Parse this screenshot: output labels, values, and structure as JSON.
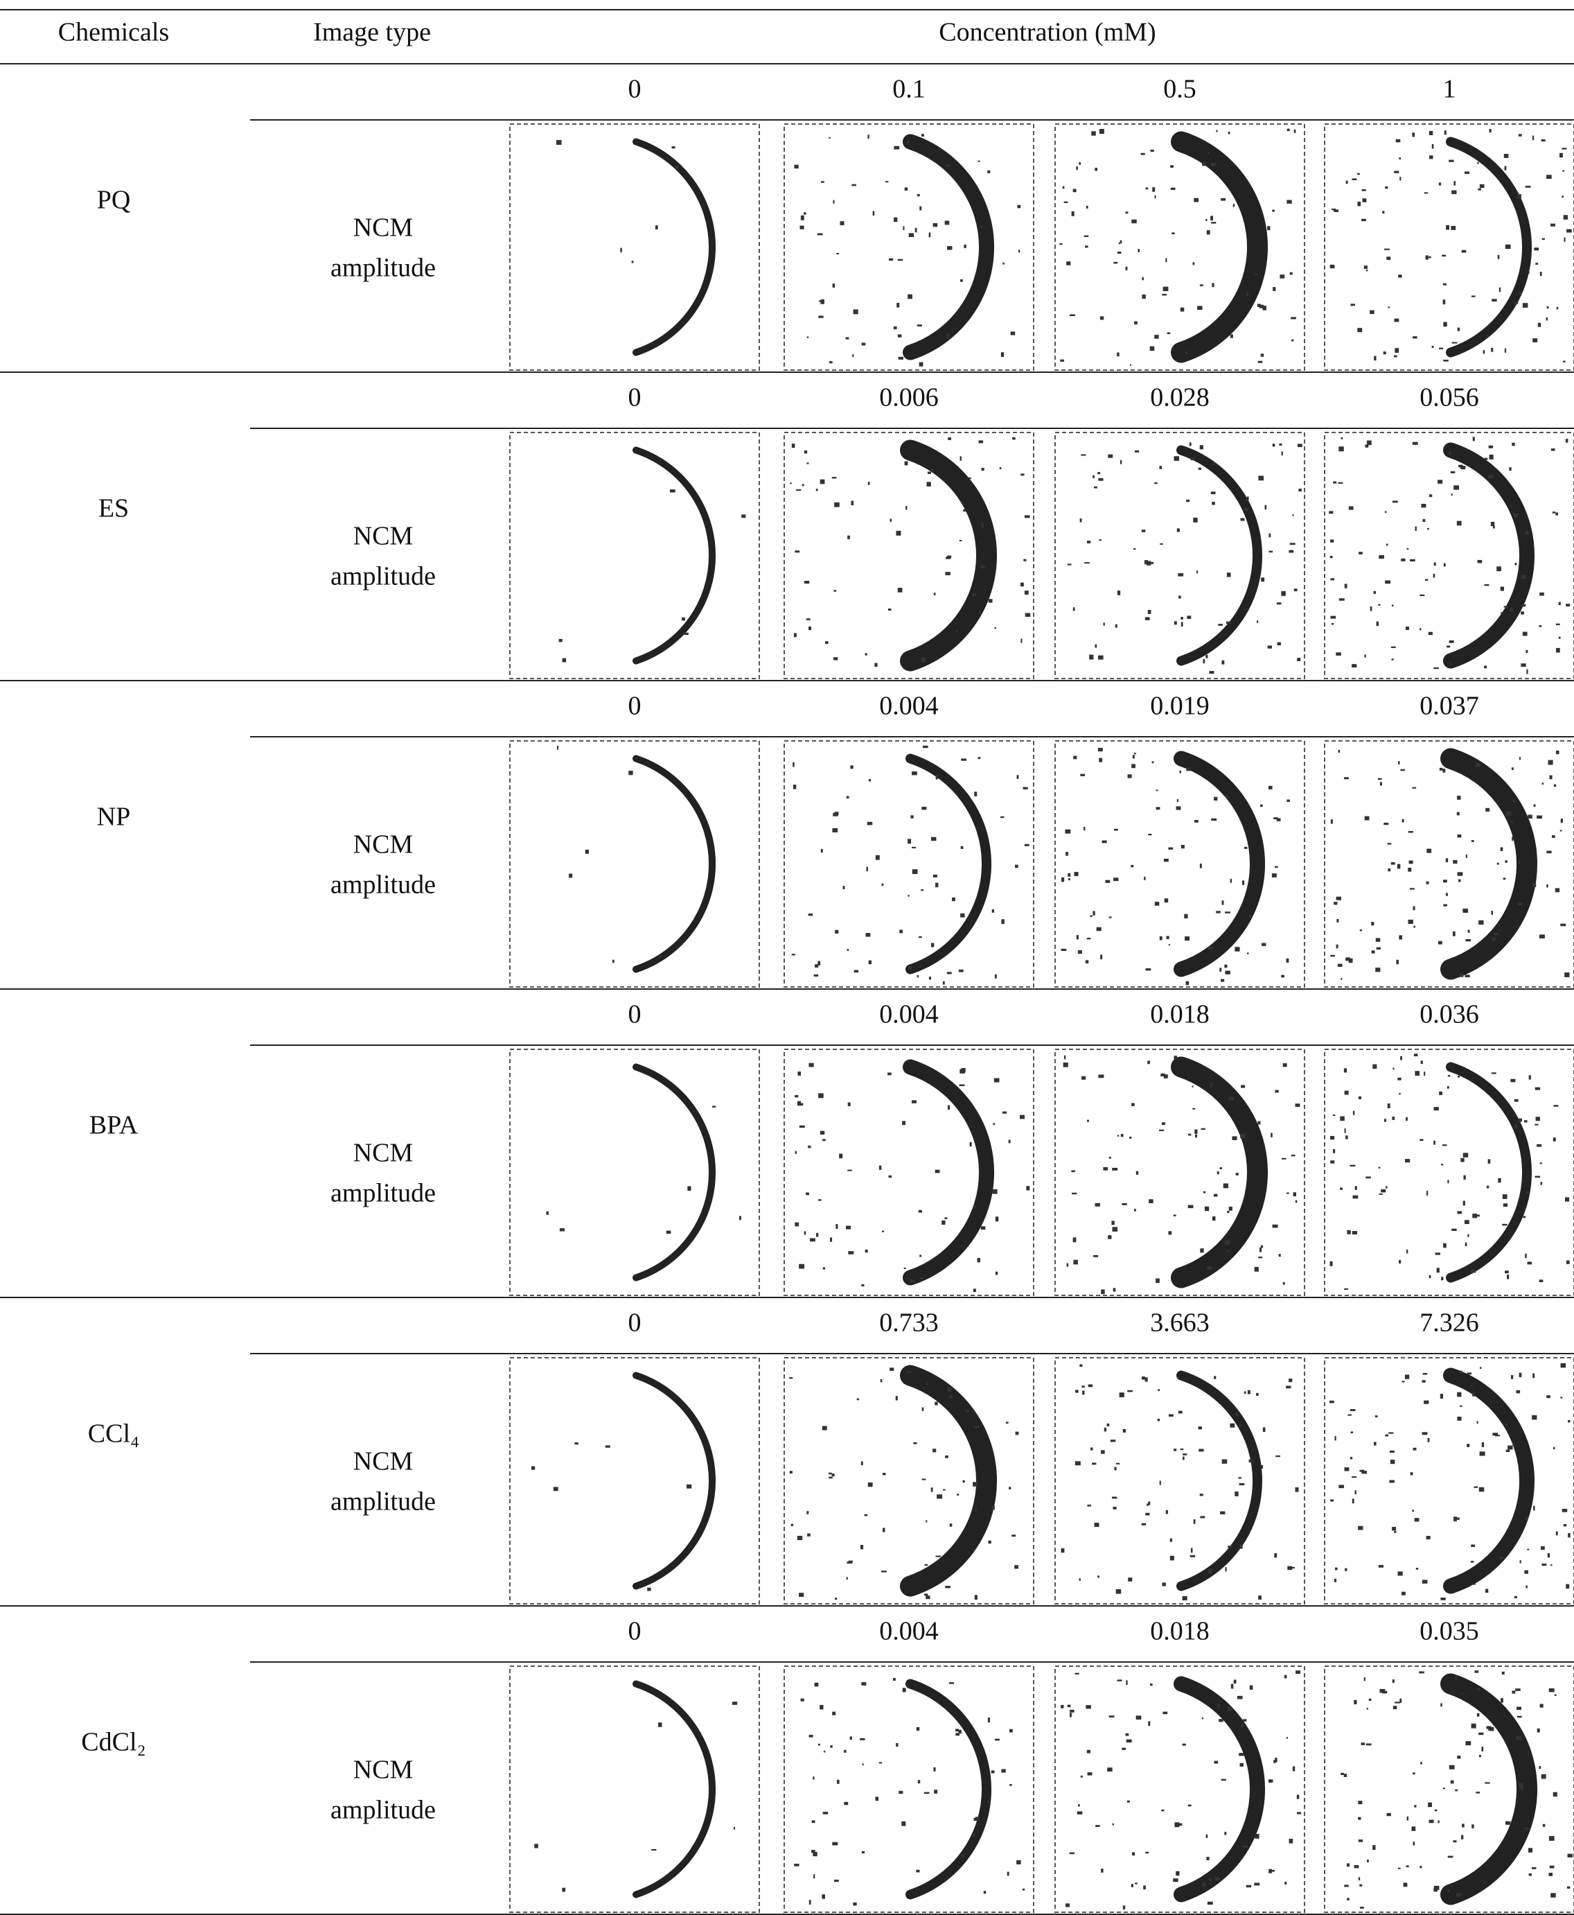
{
  "table": {
    "header": [
      "Chemicals",
      "Image type",
      "Concentration (mM)"
    ],
    "rows": [
      {
        "chemical": "PQ",
        "image_type": [
          "NCM",
          "amplitude"
        ],
        "concentrations": [
          "0",
          "0.1",
          "0.5",
          "1"
        ]
      },
      {
        "chemical": "ES",
        "image_type": [
          "NCM",
          "amplitude"
        ],
        "concentrations": [
          "0",
          "0.006",
          "0.028",
          "0.056"
        ]
      },
      {
        "chemical": "NP",
        "image_type": [
          "NCM",
          "amplitude"
        ],
        "concentrations": [
          "0",
          "0.004",
          "0.019",
          "0.037"
        ]
      },
      {
        "chemical": "BPA",
        "image_type": [
          "NCM",
          "amplitude"
        ],
        "concentrations": [
          "0",
          "0.004",
          "0.018",
          "0.036"
        ]
      },
      {
        "chemical": "CCl₄",
        "image_type": [
          "NCM",
          "amplitude"
        ],
        "concentrations": [
          "0",
          "0.733",
          "3.663",
          "7.326"
        ]
      },
      {
        "chemical": "CdCl₂",
        "image_type": [
          "NCM",
          "amplitude"
        ],
        "concentrations": [
          "0",
          "0.004",
          "0.018",
          "0.035"
        ]
      }
    ]
  }
}
